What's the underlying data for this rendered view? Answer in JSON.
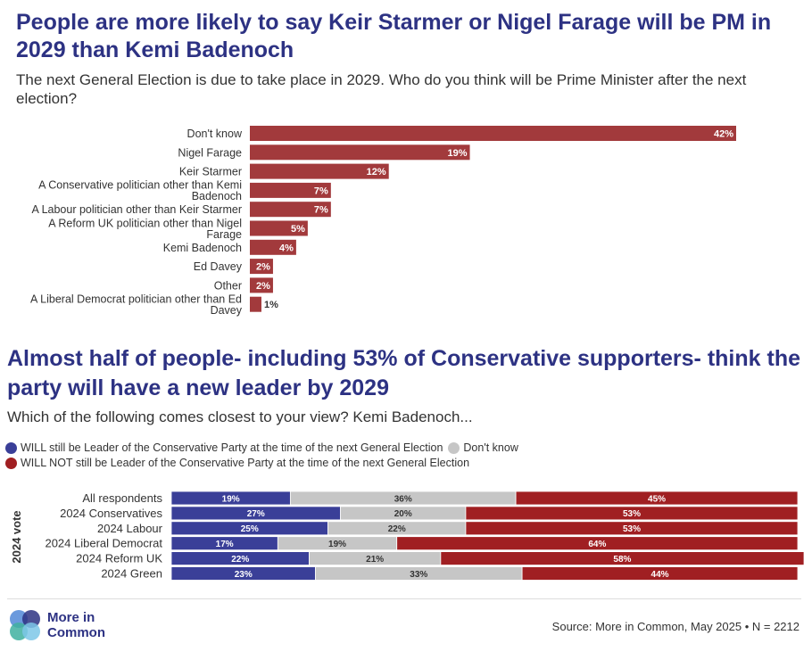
{
  "chart_data": [
    {
      "type": "bar",
      "orientation": "horizontal",
      "title": "People are more likely to say Keir Starmer or Nigel Farage will be PM in 2029 than Kemi Badenoch",
      "subtitle": "The next General Election is due to take place in 2029. Who do you think will be Prime Minister after the next election?",
      "categories": [
        [
          "Don't know"
        ],
        [
          "Nigel Farage"
        ],
        [
          "Keir Starmer"
        ],
        [
          "A Conservative politician other than Kemi",
          "Badenoch"
        ],
        [
          "A Labour politician other than Keir Starmer"
        ],
        [
          "A Reform UK politician other than Nigel",
          "Farage"
        ],
        [
          "Kemi Badenoch"
        ],
        [
          "Ed Davey"
        ],
        [
          "Other"
        ],
        [
          "A Liberal Democrat politician other than Ed",
          "Davey"
        ]
      ],
      "values": [
        42,
        19,
        12,
        7,
        7,
        5,
        4,
        2,
        2,
        1
      ],
      "value_labels": [
        "42%",
        "19%",
        "12%",
        "7%",
        "7%",
        "5%",
        "4%",
        "2%",
        "2%",
        "1%"
      ],
      "color": "#a23a3c",
      "xlim": [
        0,
        42
      ]
    },
    {
      "type": "bar",
      "orientation": "horizontal",
      "stacked": true,
      "title": "Almost half of people- including 53% of Conservative supporters- think the party will have a new leader by 2029",
      "subtitle": "Which of the following comes closest to your view? Kemi Badenoch...",
      "ylabel": "2024 vote",
      "categories": [
        "All respondents",
        "2024 Conservatives",
        "2024 Labour",
        "2024 Liberal Democrat",
        "2024 Reform UK",
        "2024 Green"
      ],
      "series": [
        {
          "name": "WILL still be Leader of the Conservative Party at the time of the next General Election",
          "color": "#3a3f98",
          "values": [
            19,
            27,
            25,
            17,
            22,
            23
          ],
          "labels": [
            "19%",
            "27%",
            "25%",
            "17%",
            "22%",
            "23%"
          ]
        },
        {
          "name": "Don't know",
          "color": "#c6c6c6",
          "values": [
            36,
            20,
            22,
            19,
            21,
            33
          ],
          "labels": [
            "36%",
            "20%",
            "22%",
            "19%",
            "21%",
            "33%"
          ]
        },
        {
          "name": "WILL NOT still be Leader of the Conservative Party at the time of the next General Election",
          "color": "#a01f22",
          "values": [
            45,
            53,
            53,
            64,
            58,
            44
          ],
          "labels": [
            "45%",
            "53%",
            "53%",
            "64%",
            "58%",
            "44%"
          ]
        }
      ],
      "xlim": [
        0,
        100
      ]
    }
  ],
  "footer": {
    "logo_line1": "More in",
    "logo_line2": "Common",
    "source": "Source: More in Common, May 2025 • N = 2212"
  }
}
